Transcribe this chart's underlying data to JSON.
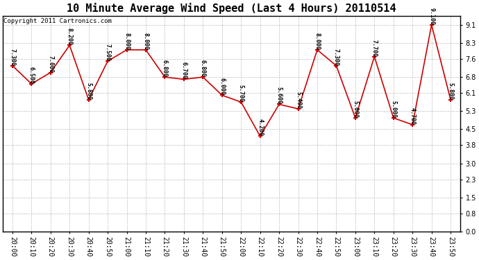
{
  "title": "10 Minute Average Wind Speed (Last 4 Hours) 20110514",
  "copyright": "Copyright 2011 Cartronics.com",
  "x_labels": [
    "20:00",
    "20:10",
    "20:20",
    "20:30",
    "20:40",
    "20:50",
    "21:00",
    "21:10",
    "21:20",
    "21:30",
    "21:40",
    "21:50",
    "22:00",
    "22:10",
    "22:20",
    "22:30",
    "22:40",
    "22:50",
    "23:00",
    "23:10",
    "23:20",
    "23:30",
    "23:40",
    "23:50"
  ],
  "y_values": [
    7.3,
    6.5,
    7.0,
    8.2,
    5.8,
    7.5,
    8.0,
    8.0,
    6.8,
    6.7,
    6.8,
    6.0,
    5.7,
    4.2,
    5.6,
    5.4,
    8.0,
    7.3,
    5.0,
    7.7,
    5.0,
    4.7,
    9.1,
    5.8
  ],
  "point_labels": [
    "7.300",
    "6.500",
    "7.000",
    "8.200",
    "5.800",
    "7.500",
    "8.000",
    "8.000",
    "6.800",
    "6.700",
    "6.800",
    "6.000",
    "5.700",
    "4.200",
    "5.600",
    "5.400",
    "8.000",
    "7.300",
    "5.000",
    "7.700",
    "5.000",
    "4.700",
    "9.100",
    "5.800"
  ],
  "line_color": "#cc0000",
  "marker_color": "#cc0000",
  "bg_color": "#ffffff",
  "grid_color": "#bbbbbb",
  "ylim": [
    0.0,
    9.5
  ],
  "yticks": [
    0.0,
    0.8,
    1.5,
    2.3,
    3.0,
    3.8,
    4.5,
    5.3,
    6.1,
    6.8,
    7.6,
    8.3,
    9.1
  ],
  "title_fontsize": 11,
  "label_fontsize": 6.0,
  "tick_fontsize": 7.0,
  "copyright_fontsize": 6.5
}
